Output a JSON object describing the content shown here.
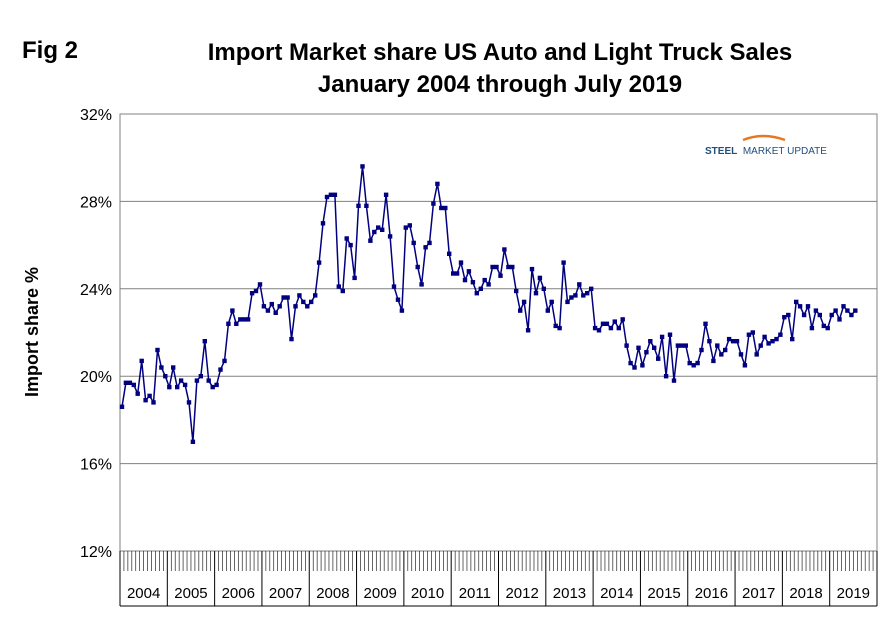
{
  "figure_label": "Fig 2",
  "chart_data": {
    "type": "line",
    "title": "Import Market share US Auto and Light Truck Sales",
    "subtitle": "January 2004 through July 2019",
    "xlabel": "",
    "ylabel": "Import share %",
    "ylim": [
      12,
      32
    ],
    "yticks": [
      "12%",
      "16%",
      "20%",
      "24%",
      "28%",
      "32%"
    ],
    "ytick_values": [
      12,
      16,
      20,
      24,
      28,
      32
    ],
    "grid": "horizontal",
    "legend": "none",
    "year_labels": [
      "2004",
      "2005",
      "2006",
      "2007",
      "2008",
      "2009",
      "2010",
      "2011",
      "2012",
      "2013",
      "2014",
      "2015",
      "2016",
      "2017",
      "2018",
      "2019"
    ],
    "series": [
      {
        "name": "Import share %",
        "color": "#000080",
        "start": "2004-01",
        "values": [
          18.6,
          19.7,
          19.7,
          19.6,
          19.2,
          20.7,
          18.9,
          19.1,
          18.8,
          21.2,
          20.4,
          20.0,
          19.5,
          20.4,
          19.5,
          19.8,
          19.6,
          18.8,
          17.0,
          19.8,
          20.0,
          21.6,
          19.8,
          19.5,
          19.6,
          20.3,
          20.7,
          22.4,
          23.0,
          22.4,
          22.6,
          22.6,
          22.6,
          23.8,
          23.9,
          24.2,
          23.2,
          23.0,
          23.3,
          22.9,
          23.2,
          23.6,
          23.6,
          21.7,
          23.2,
          23.7,
          23.4,
          23.2,
          23.4,
          23.7,
          25.2,
          27.0,
          28.2,
          28.3,
          28.3,
          24.1,
          23.9,
          26.3,
          26.0,
          24.5,
          27.8,
          29.6,
          27.8,
          26.2,
          26.6,
          26.8,
          26.7,
          28.3,
          26.4,
          24.1,
          23.5,
          23.0,
          26.8,
          26.9,
          26.1,
          25.0,
          24.2,
          25.9,
          26.1,
          27.9,
          28.8,
          27.7,
          27.7,
          25.6,
          24.7,
          24.7,
          25.2,
          24.4,
          24.8,
          24.3,
          23.8,
          24.0,
          24.4,
          24.2,
          25.0,
          25.0,
          24.6,
          25.8,
          25.0,
          25.0,
          23.9,
          23.0,
          23.4,
          22.1,
          24.9,
          23.8,
          24.5,
          24.0,
          23.0,
          23.4,
          22.3,
          22.2,
          25.2,
          23.4,
          23.6,
          23.7,
          24.2,
          23.7,
          23.8,
          24.0,
          22.2,
          22.1,
          22.4,
          22.4,
          22.2,
          22.5,
          22.2,
          22.6,
          21.4,
          20.6,
          20.4,
          21.3,
          20.5,
          21.1,
          21.6,
          21.3,
          20.8,
          21.8,
          20.0,
          21.9,
          19.8,
          21.4,
          21.4,
          21.4,
          20.6,
          20.5,
          20.6,
          21.2,
          22.4,
          21.6,
          20.7,
          21.4,
          21.0,
          21.2,
          21.7,
          21.6,
          21.6,
          21.0,
          20.5,
          21.9,
          22.0,
          21.0,
          21.4,
          21.8,
          21.5,
          21.6,
          21.7,
          21.9,
          22.7,
          22.8,
          21.7,
          23.4,
          23.2,
          22.8,
          23.2,
          22.2,
          23.0,
          22.8,
          22.3,
          22.2,
          22.8,
          23.0,
          22.6,
          23.2,
          23.0,
          22.8,
          23.0
        ]
      }
    ]
  },
  "logo": {
    "text_colored": "STEEL",
    "text_rest": "MARKET UPDATE",
    "accent_color": "#e87722",
    "text_color": "#1f4e79"
  }
}
